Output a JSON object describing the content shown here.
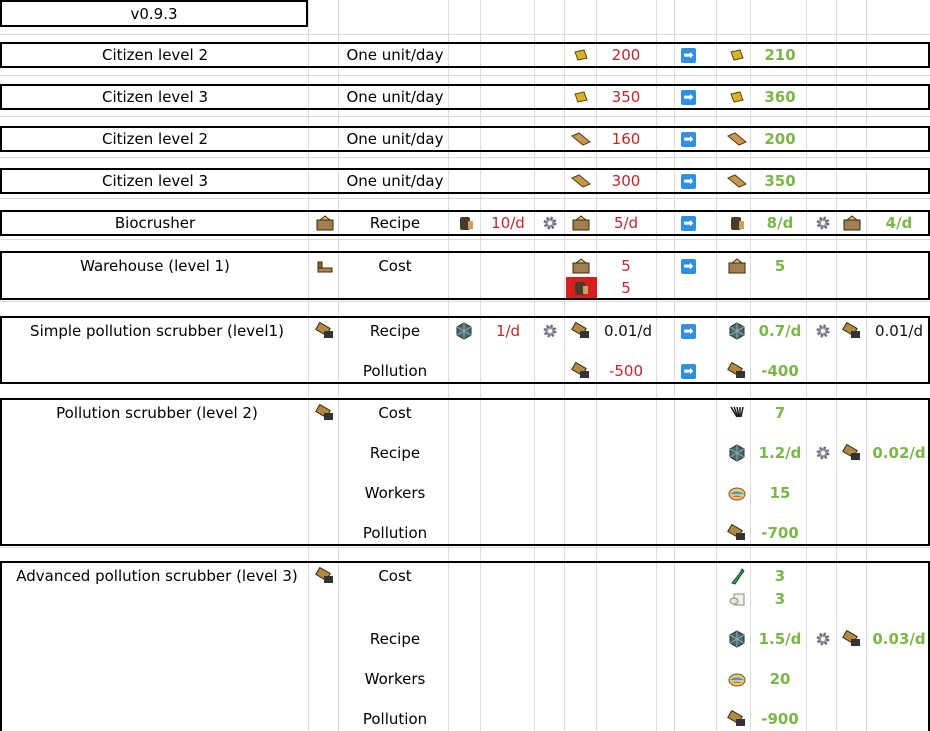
{
  "version": "v0.9.3",
  "arrow_glyph": "➡",
  "rows": {
    "citizen2_coin": {
      "name": "Citizen level 2",
      "cost_label": "One unit/day",
      "old": "200",
      "new": "210",
      "icon": "coin-icon"
    },
    "citizen3_coin": {
      "name": "Citizen level 3",
      "cost_label": "One unit/day",
      "old": "350",
      "new": "360",
      "icon": "coin-icon"
    },
    "citizen2_wood": {
      "name": "Citizen level 2",
      "cost_label": "One unit/day",
      "old": "160",
      "new": "200",
      "icon": "wood-icon"
    },
    "citizen3_wood": {
      "name": "Citizen level 3",
      "cost_label": "One unit/day",
      "old": "300",
      "new": "350",
      "icon": "wood-icon"
    },
    "biocrusher": {
      "name": "Biocrusher",
      "label": "Recipe",
      "in_old": "10/d",
      "out_old": "5/d",
      "in_new": "8/d",
      "out_new": "4/d"
    },
    "warehouse": {
      "name": "Warehouse (level 1)",
      "label": "Cost",
      "old1": "5",
      "old2": "5",
      "new1": "5"
    },
    "simple_scrubber": {
      "name": "Simple pollution scrubber (level1)",
      "label": "Recipe",
      "in_old": "1/d",
      "out_old": "0.01/d",
      "in_new": "0.7/d",
      "out_new": "0.01/d",
      "pollution_label": "Pollution",
      "pollution_old": "-500",
      "pollution_new": "-400"
    },
    "scrubber2": {
      "name": "Pollution scrubber (level 2)",
      "cost_label": "Cost",
      "cost": "7",
      "recipe_label": "Recipe",
      "recipe_in": "1.2/d",
      "recipe_out": "0.02/d",
      "workers_label": "Workers",
      "workers": "15",
      "pollution_label": "Pollution",
      "pollution": "-700"
    },
    "scrubber3": {
      "name": "Advanced pollution scrubber (level 3)",
      "cost_label": "Cost",
      "cost1": "3",
      "cost2": "3",
      "recipe_label": "Recipe",
      "recipe_in": "1.5/d",
      "recipe_out": "0.03/d",
      "workers_label": "Workers",
      "workers": "20",
      "pollution_label": "Pollution",
      "pollution": "-900"
    }
  },
  "colors": {
    "old_value": "#c0262c",
    "new_value": "#7ab648",
    "arrow": "#2f8fe0"
  }
}
